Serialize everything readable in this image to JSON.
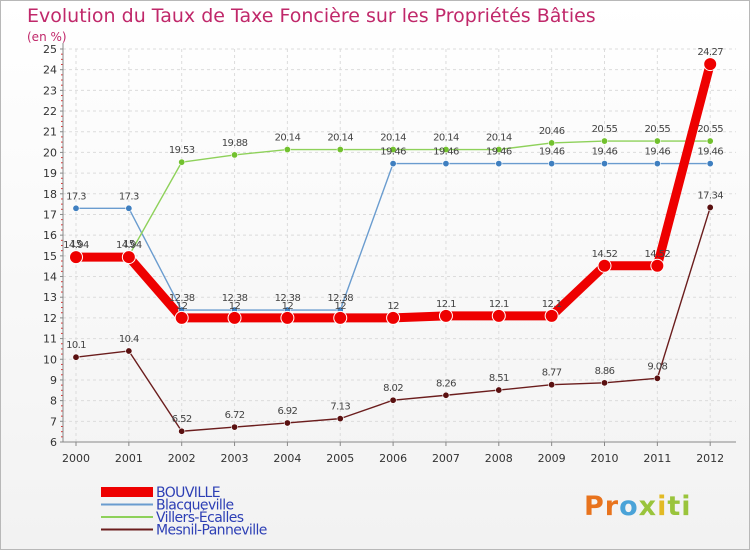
{
  "chart_data": {
    "type": "line",
    "title": "Evolution du Taux de Taxe Foncière sur les Propriétés Bâties",
    "ylabel": "(en %)",
    "xlabel": "",
    "ylim": [
      6,
      25
    ],
    "yticks": [
      "6",
      "7",
      "8",
      "9",
      "10",
      "11",
      "12",
      "13",
      "14",
      "15",
      "16",
      "17",
      "18",
      "19",
      "20",
      "21",
      "22",
      "23",
      "24",
      "25"
    ],
    "categories": [
      "2000",
      "2001",
      "2002",
      "2003",
      "2004",
      "2005",
      "2006",
      "2007",
      "2008",
      "2009",
      "2010",
      "2011",
      "2012"
    ],
    "series": [
      {
        "name": "BOUVILLE",
        "color": "#ee0000",
        "point_color": "#ee0000",
        "values": [
          14.94,
          14.94,
          12,
          12,
          12,
          12,
          12,
          12.1,
          12.1,
          12.1,
          14.52,
          14.52,
          24.27
        ],
        "labels": [
          "14.94",
          "14.94",
          "12",
          "12",
          "12",
          "12",
          "12",
          "12.1",
          "12.1",
          "12.1",
          "14.52",
          "14.52",
          "24.27"
        ]
      },
      {
        "name": "Blacqueville",
        "color": "#6a9ccf",
        "point_color": "#3f7fc0",
        "values": [
          17.3,
          17.3,
          12.38,
          12.38,
          12.38,
          12.38,
          19.46,
          19.46,
          19.46,
          19.46,
          19.46,
          19.46,
          19.46
        ],
        "labels": [
          "17.3",
          "17.3",
          "12.38",
          "12.38",
          "12.38",
          "12.38",
          "19.46",
          "19.46",
          "19.46",
          "19.46",
          "19.46",
          "19.46",
          "19.46"
        ]
      },
      {
        "name": "Villers-Écalles",
        "color": "#8ed15a",
        "point_color": "#72c12e",
        "values": [
          15,
          15,
          19.53,
          19.88,
          20.14,
          20.14,
          20.14,
          20.14,
          20.14,
          20.46,
          20.55,
          20.55,
          20.55
        ],
        "labels": [
          "15",
          "15",
          "19.53",
          "19.88",
          "20.14",
          "20.14",
          "20.14",
          "20.14",
          "20.14",
          "20.46",
          "20.55",
          "20.55",
          "20.55"
        ]
      },
      {
        "name": "Mesnil-Panneville",
        "color": "#6b1d1d",
        "point_color": "#5a1010",
        "values": [
          10.1,
          10.4,
          6.52,
          6.72,
          6.92,
          7.13,
          8.02,
          8.26,
          8.51,
          8.77,
          8.86,
          9.08,
          17.34
        ],
        "labels": [
          "10.1",
          "10.4",
          "6.52",
          "6.72",
          "6.92",
          "7.13",
          "8.02",
          "8.26",
          "8.51",
          "8.77",
          "8.86",
          "9.08",
          "17.34"
        ]
      }
    ],
    "legend_position": "bottom-left"
  },
  "logo": {
    "p1": "Pr",
    "p2": "o",
    "p3": "x",
    "p4": "i",
    "p5": "ti"
  }
}
